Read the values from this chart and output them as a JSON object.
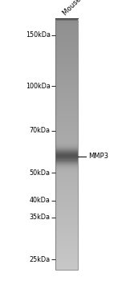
{
  "title": "",
  "sample_label": "Mouse lung",
  "band_label": "MMP3",
  "mw_markers": [
    "150kDa",
    "100kDa",
    "70kDa",
    "50kDa",
    "40kDa",
    "35kDa",
    "25kDa"
  ],
  "mw_values": [
    150,
    100,
    70,
    50,
    40,
    35,
    25
  ],
  "band_mw": 57,
  "bg_color": "#ffffff",
  "label_fontsize": 6.0,
  "marker_fontsize": 5.8,
  "sample_label_fontsize": 6.2
}
